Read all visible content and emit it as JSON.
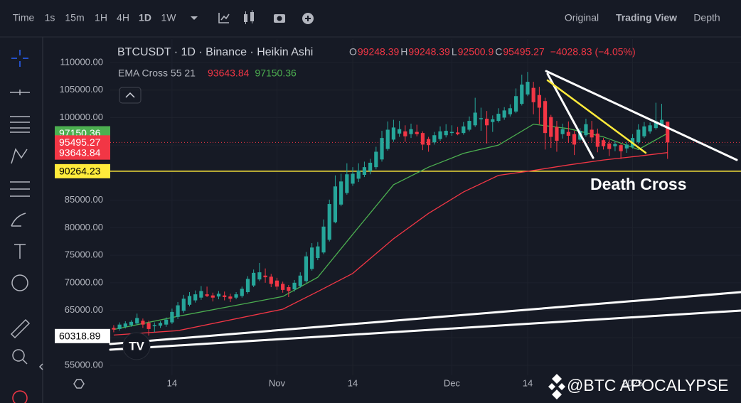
{
  "chart_data": {
    "type": "candlestick",
    "title": "BTCUSDT · 1D · Binance · Heikin Ashi",
    "ohlc_prefixes": [
      "O",
      "H",
      "L",
      "C"
    ],
    "change": "−4028.83 (−4.05%)",
    "indicator": "EMA Cross 55 21",
    "annotation": "Death Cross",
    "watermark": "@BTC APOCALYPSE",
    "toolbar": [
      "Time",
      "1s",
      "15m",
      "1H",
      "4H",
      "1D",
      "1W"
    ],
    "views": [
      "Original",
      "Trading View",
      "Depth"
    ],
    "up_color": "#26a69a",
    "down_color": "#f23645",
    "grid": true,
    "xlim": [
      -0.6,
      107.6
    ],
    "xticks": [
      {
        "value": 10,
        "label": "14"
      },
      {
        "value": 28,
        "label": "Nov"
      },
      {
        "value": 41,
        "label": "14"
      },
      {
        "value": 58,
        "label": "Dec"
      },
      {
        "value": 71,
        "label": "14"
      },
      {
        "value": 89,
        "label": "2025"
      }
    ],
    "ylim": [
      53193,
      114260
    ],
    "yticks": [
      {
        "value": 55000,
        "label": "55000.00"
      },
      {
        "value": 60000,
        "label": "60000.00"
      },
      {
        "value": 65000,
        "label": "65000.00"
      },
      {
        "value": 70000,
        "label": "70000.00"
      },
      {
        "value": 75000,
        "label": "75000.00"
      },
      {
        "value": 80000,
        "label": "80000.00"
      },
      {
        "value": 85000,
        "label": "85000.00"
      },
      {
        "value": 90000,
        "label": "90000.00"
      },
      {
        "value": 95000,
        "label": "95000.00"
      },
      {
        "value": 100000,
        "label": "100000.00"
      },
      {
        "value": 105000,
        "label": "105000.00"
      },
      {
        "value": 110000,
        "label": "110000.00"
      }
    ],
    "levels": [
      {
        "value": 90264.23,
        "color": "#ffeb3b",
        "line": true
      },
      {
        "value": 60318.89,
        "color": "#ffffff",
        "line": false
      }
    ],
    "candles": [
      [
        61800,
        62300,
        61000,
        61500
      ],
      [
        61600,
        62800,
        61300,
        62400
      ],
      [
        62000,
        63000,
        61700,
        62600
      ],
      [
        62300,
        63200,
        62000,
        62900
      ],
      [
        62600,
        64400,
        62300,
        63600
      ],
      [
        63100,
        63500,
        61800,
        62400
      ],
      [
        62700,
        63100,
        60400,
        61600
      ],
      [
        62100,
        62800,
        61000,
        62300
      ],
      [
        62200,
        63000,
        61800,
        62700
      ],
      [
        62400,
        63700,
        62000,
        63300
      ],
      [
        62800,
        65300,
        62500,
        64700
      ],
      [
        63800,
        66500,
        63400,
        65900
      ],
      [
        64900,
        67800,
        64500,
        67100
      ],
      [
        66000,
        68300,
        65700,
        67600
      ],
      [
        66800,
        68600,
        66400,
        67900
      ],
      [
        67300,
        69400,
        66900,
        68500
      ],
      [
        67900,
        69300,
        67400,
        67600
      ],
      [
        67700,
        68200,
        66600,
        67300
      ],
      [
        67500,
        68500,
        67000,
        68000
      ],
      [
        67700,
        68400,
        66800,
        67400
      ],
      [
        67500,
        68000,
        66500,
        67100
      ],
      [
        67300,
        68300,
        67000,
        67900
      ],
      [
        67600,
        69300,
        67300,
        68900
      ],
      [
        68300,
        71200,
        68000,
        70700
      ],
      [
        69500,
        72400,
        69200,
        71800
      ],
      [
        70600,
        73600,
        70300,
        71900
      ],
      [
        71300,
        72600,
        70000,
        71000
      ],
      [
        71100,
        71600,
        69200,
        69800
      ],
      [
        70400,
        70900,
        68700,
        69300
      ],
      [
        69800,
        70200,
        68200,
        68700
      ],
      [
        69200,
        69600,
        67400,
        68500
      ],
      [
        68800,
        70500,
        68400,
        70000
      ],
      [
        69400,
        71900,
        69100,
        71300
      ],
      [
        70300,
        75600,
        70000,
        74800
      ],
      [
        72500,
        77200,
        72200,
        76400
      ],
      [
        74500,
        77400,
        74100,
        76600
      ],
      [
        75500,
        81500,
        75200,
        80200
      ],
      [
        77800,
        85100,
        77500,
        84300
      ],
      [
        81000,
        89500,
        80800,
        87500
      ],
      [
        84200,
        89800,
        83900,
        88400
      ],
      [
        86300,
        91700,
        86000,
        89700
      ],
      [
        88000,
        91000,
        87600,
        89800
      ],
      [
        88900,
        91700,
        88300,
        90400
      ],
      [
        89600,
        92000,
        89200,
        91000
      ],
      [
        90300,
        92500,
        89700,
        91800
      ],
      [
        91000,
        94700,
        90600,
        93800
      ],
      [
        92400,
        97600,
        92000,
        96300
      ],
      [
        94300,
        99300,
        94000,
        97800
      ],
      [
        96000,
        99600,
        95600,
        98200
      ],
      [
        97100,
        99400,
        96500,
        97900
      ],
      [
        97500,
        98600,
        95600,
        96600
      ],
      [
        97000,
        98900,
        96300,
        97900
      ],
      [
        97400,
        98700,
        96600,
        97000
      ],
      [
        97200,
        97500,
        94100,
        95100
      ],
      [
        96100,
        96500,
        93800,
        95000
      ],
      [
        95500,
        97400,
        95100,
        96800
      ],
      [
        96100,
        98400,
        95800,
        97500
      ],
      [
        96800,
        98800,
        96400,
        97600
      ],
      [
        97200,
        98600,
        96700,
        97400
      ],
      [
        97300,
        98300,
        96800,
        97000
      ],
      [
        97200,
        99200,
        96900,
        98400
      ],
      [
        97800,
        100200,
        97500,
        99400
      ],
      [
        98600,
        103600,
        98300,
        100900
      ],
      [
        99700,
        101800,
        97600,
        99900
      ],
      [
        99800,
        101200,
        95300,
        98600
      ],
      [
        99200,
        100400,
        97400,
        99700
      ],
      [
        99400,
        101700,
        99100,
        100700
      ],
      [
        100000,
        101900,
        99600,
        101300
      ],
      [
        100600,
        102400,
        100200,
        101700
      ],
      [
        101100,
        105300,
        100800,
        103900
      ],
      [
        102500,
        107800,
        102200,
        106000
      ],
      [
        104200,
        108300,
        103900,
        106500
      ],
      [
        105400,
        106500,
        100600,
        102800
      ],
      [
        104100,
        105600,
        98800,
        101800
      ],
      [
        103000,
        103600,
        94200,
        97200
      ],
      [
        100100,
        100500,
        94500,
        96500
      ],
      [
        98300,
        99400,
        93800,
        95800
      ],
      [
        97000,
        98900,
        96200,
        97900
      ],
      [
        97400,
        99300,
        95400,
        96700
      ],
      [
        97000,
        97600,
        93200,
        95100
      ],
      [
        96000,
        98100,
        95800,
        97600
      ],
      [
        96800,
        99800,
        96500,
        98800
      ],
      [
        97800,
        99400,
        95600,
        96400
      ],
      [
        97100,
        98000,
        93700,
        94700
      ],
      [
        95900,
        96300,
        94200,
        94800
      ],
      [
        95300,
        95900,
        93000,
        94300
      ],
      [
        94800,
        95800,
        93900,
        95200
      ],
      [
        95000,
        95200,
        92500,
        93900
      ],
      [
        94400,
        95600,
        93600,
        95100
      ],
      [
        94700,
        97000,
        94400,
        96300
      ],
      [
        95500,
        98800,
        95200,
        97800
      ],
      [
        96600,
        99200,
        96300,
        98400
      ],
      [
        97500,
        99100,
        97100,
        98600
      ],
      [
        98100,
        102700,
        97800,
        99300
      ],
      [
        98700,
        102500,
        98400,
        99600
      ],
      [
        99248.39,
        99248.39,
        92500.9,
        95495.27
      ]
    ],
    "series": [
      {
        "color": "#f23645",
        "x": [
          0,
          11,
          29,
          35,
          41,
          48,
          54,
          60,
          66,
          72,
          78,
          84,
          90,
          95
        ],
        "values": [
          60500,
          61300,
          65200,
          68400,
          71700,
          78000,
          82600,
          86500,
          89500,
          90400,
          91400,
          92300,
          93000,
          93643.84
        ]
      },
      {
        "color": "#4caf50",
        "x": [
          0,
          11,
          29,
          35,
          41,
          48,
          54,
          60,
          66,
          72,
          78,
          84,
          90,
          95
        ],
        "values": [
          61500,
          63900,
          67500,
          71000,
          78800,
          87800,
          91000,
          93500,
          95000,
          98800,
          98000,
          96500,
          94200,
          97150.36
        ]
      }
    ]
  }
}
